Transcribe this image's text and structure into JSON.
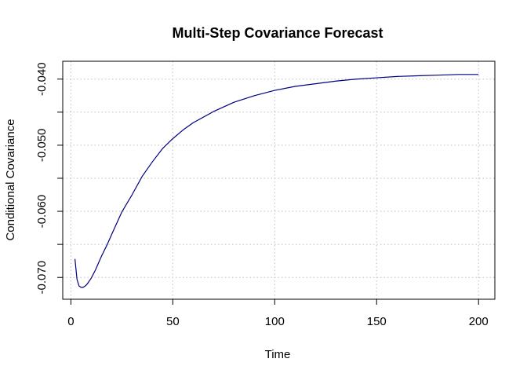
{
  "chart_data": {
    "type": "line",
    "title": "Multi-Step Covariance Forecast",
    "xlabel": "Time",
    "ylabel": "Conditional Covariance",
    "xlim": [
      -4,
      208
    ],
    "ylim": [
      -0.0733,
      -0.0373
    ],
    "xticks": [
      0,
      50,
      100,
      150,
      200
    ],
    "xtick_labels": [
      "0",
      "50",
      "100",
      "150",
      "200"
    ],
    "yticks": [
      -0.07,
      -0.065,
      -0.06,
      -0.055,
      -0.05,
      -0.045,
      -0.04
    ],
    "ytick_labels": [
      "-0.070",
      "",
      "-0.060",
      "",
      "-0.050",
      "",
      "-0.040"
    ],
    "grid": true,
    "legend": "none",
    "series": [
      {
        "color": "#000080",
        "x": [
          2,
          3,
          4,
          5,
          6,
          7,
          8,
          10,
          12,
          15,
          18,
          20,
          25,
          30,
          35,
          40,
          45,
          50,
          55,
          60,
          70,
          80,
          90,
          100,
          110,
          120,
          130,
          140,
          150,
          160,
          170,
          180,
          190,
          200
        ],
        "y": [
          -0.0672,
          -0.0703,
          -0.0713,
          -0.0715,
          -0.0715,
          -0.0713,
          -0.071,
          -0.0701,
          -0.0689,
          -0.0668,
          -0.0649,
          -0.0635,
          -0.0601,
          -0.0575,
          -0.0547,
          -0.0525,
          -0.0505,
          -0.049,
          -0.0477,
          -0.0466,
          -0.0449,
          -0.0435,
          -0.0425,
          -0.0417,
          -0.0411,
          -0.0407,
          -0.0403,
          -0.04,
          -0.0398,
          -0.0396,
          -0.0395,
          -0.0394,
          -0.0393,
          -0.0393
        ]
      }
    ]
  }
}
